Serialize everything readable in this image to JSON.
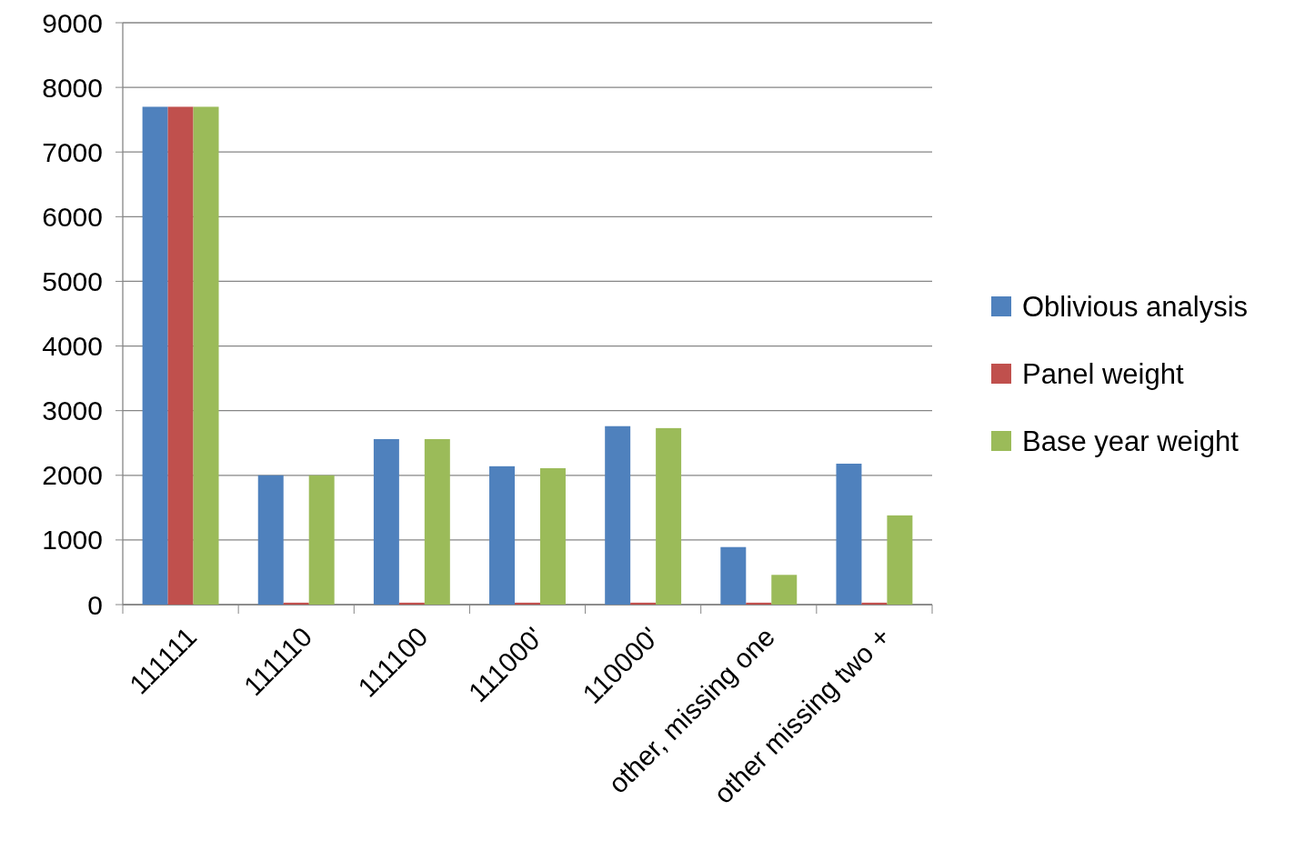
{
  "chart_data": {
    "type": "bar",
    "categories": [
      "111111",
      "111110",
      "111100",
      "111000'",
      "110000'",
      "other, missing one",
      "other missing two +"
    ],
    "series": [
      {
        "name": "Oblivious analysis",
        "color": "#4f81bd",
        "values": [
          7700,
          2000,
          2560,
          2140,
          2760,
          890,
          2180
        ]
      },
      {
        "name": "Panel weight",
        "color": "#c0504d",
        "values": [
          7700,
          30,
          30,
          30,
          30,
          30,
          30
        ]
      },
      {
        "name": "Base year weight",
        "color": "#9bbb59",
        "values": [
          7700,
          2000,
          2560,
          2110,
          2730,
          460,
          1380
        ]
      }
    ],
    "ylim": [
      0,
      9000
    ],
    "yticks": [
      0,
      1000,
      2000,
      3000,
      4000,
      5000,
      6000,
      7000,
      8000,
      9000
    ],
    "grid": "y",
    "legend": "right"
  }
}
